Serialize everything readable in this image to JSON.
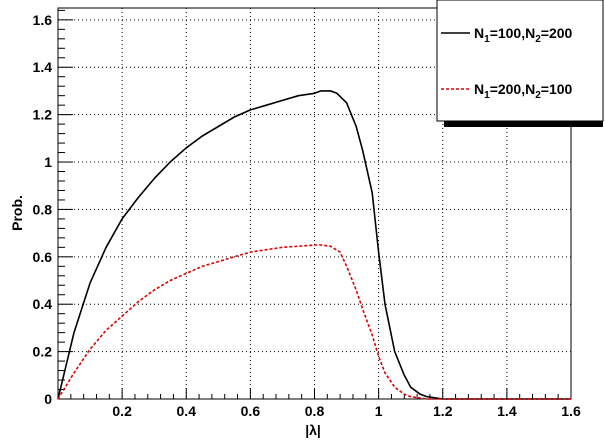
{
  "chart_data": {
    "type": "line",
    "xlabel": "|λ|",
    "ylabel": "Prob.",
    "xlim": [
      0,
      1.6
    ],
    "ylim": [
      0,
      1.65
    ],
    "grid": true,
    "legend_position": "top-right",
    "x_ticks": [
      "0.2",
      "0.4",
      "0.6",
      "0.8",
      "1",
      "1.2",
      "1.4",
      "1.6"
    ],
    "x_tick_values": [
      0.2,
      0.4,
      0.6,
      0.8,
      1.0,
      1.2,
      1.4,
      1.6
    ],
    "y_ticks": [
      "0",
      "0.2",
      "0.4",
      "0.6",
      "0.8",
      "1",
      "1.2",
      "1.4",
      "1.6"
    ],
    "y_tick_values": [
      0,
      0.2,
      0.4,
      0.6,
      0.8,
      1.0,
      1.2,
      1.4,
      1.6
    ],
    "series": [
      {
        "legend_parts": [
          "N",
          "1",
          "=100,N",
          "2",
          "=200"
        ],
        "color": "#000000",
        "style": "solid",
        "x": [
          0,
          0.05,
          0.1,
          0.15,
          0.2,
          0.25,
          0.3,
          0.35,
          0.4,
          0.45,
          0.5,
          0.55,
          0.6,
          0.65,
          0.7,
          0.75,
          0.8,
          0.82,
          0.85,
          0.87,
          0.9,
          0.93,
          0.95,
          0.98,
          1.0,
          1.02,
          1.05,
          1.08,
          1.1,
          1.13,
          1.15,
          1.2,
          1.3,
          1.6
        ],
        "y": [
          0,
          0.28,
          0.49,
          0.64,
          0.76,
          0.85,
          0.93,
          1.0,
          1.06,
          1.11,
          1.15,
          1.19,
          1.22,
          1.24,
          1.26,
          1.28,
          1.29,
          1.3,
          1.3,
          1.29,
          1.25,
          1.15,
          1.05,
          0.87,
          0.62,
          0.4,
          0.2,
          0.1,
          0.05,
          0.02,
          0.01,
          0,
          0,
          0
        ]
      },
      {
        "legend_parts": [
          "N",
          "1",
          "=200,N",
          "2",
          "=100"
        ],
        "color": "#dd0000",
        "style": "dashed",
        "x": [
          0,
          0.05,
          0.1,
          0.15,
          0.2,
          0.25,
          0.3,
          0.35,
          0.4,
          0.45,
          0.5,
          0.55,
          0.6,
          0.65,
          0.7,
          0.75,
          0.8,
          0.82,
          0.85,
          0.88,
          0.9,
          0.93,
          0.95,
          0.98,
          1.0,
          1.02,
          1.05,
          1.08,
          1.1,
          1.15,
          1.2,
          1.3,
          1.6
        ],
        "y": [
          0,
          0.11,
          0.21,
          0.29,
          0.35,
          0.41,
          0.46,
          0.5,
          0.53,
          0.56,
          0.58,
          0.6,
          0.62,
          0.63,
          0.64,
          0.645,
          0.65,
          0.65,
          0.645,
          0.62,
          0.56,
          0.46,
          0.38,
          0.27,
          0.18,
          0.11,
          0.05,
          0.02,
          0.01,
          0,
          0,
          0,
          0
        ]
      }
    ]
  }
}
